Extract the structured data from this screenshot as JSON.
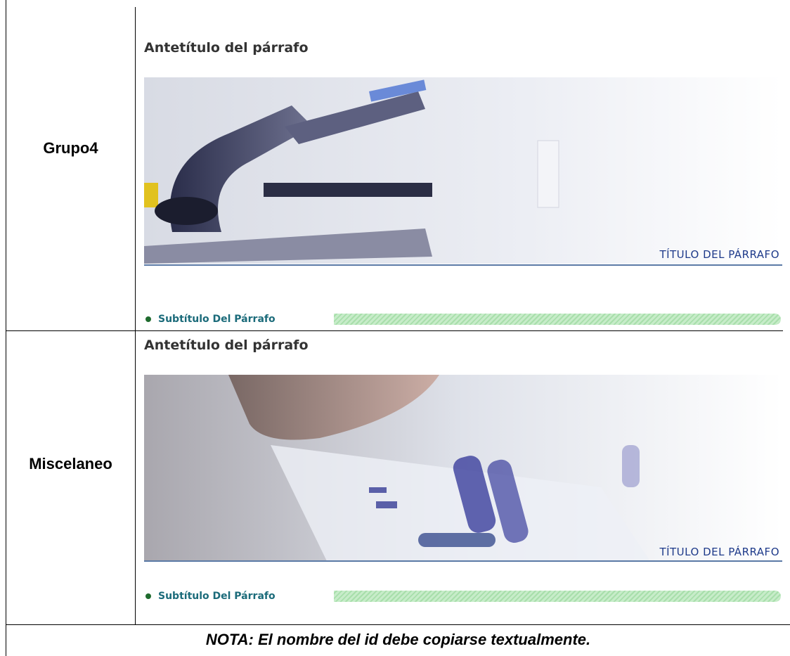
{
  "rows": [
    {
      "label": "Grupo4",
      "antetitulo": "Antetítulo del párrafo",
      "titulo": "TÍTULO DEL PÁRRAFO",
      "subtitulo": "Subtítulo Del Párrafo"
    },
    {
      "label": "Miscelaneo",
      "antetitulo": "Antetítulo del párrafo",
      "titulo": "TÍTULO DEL PÁRRAFO",
      "subtitulo": "Subtítulo Del Párrafo"
    }
  ],
  "note": "NOTA: El nombre del id debe copiarse textualmente."
}
